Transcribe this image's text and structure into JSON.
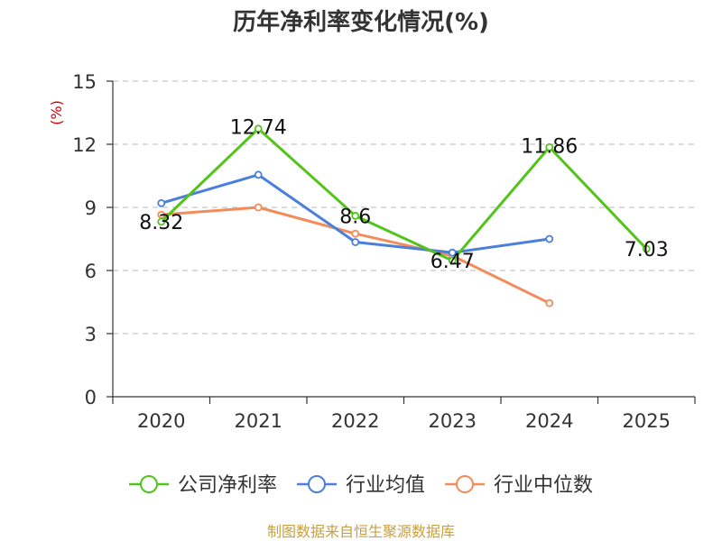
{
  "chart_data": {
    "type": "line",
    "title": "历年净利率变化情况(%)",
    "ylabel": "(%)",
    "xlabel": "",
    "categories": [
      "2020",
      "2021",
      "2022",
      "2023",
      "2024",
      "2025"
    ],
    "ylim": [
      0,
      15
    ],
    "yticks": [
      0,
      3,
      6,
      9,
      12,
      15
    ],
    "grid": true,
    "legend_position": "bottom",
    "series": [
      {
        "name": "公司净利率",
        "color": "#52c41a",
        "values": [
          8.32,
          12.74,
          8.6,
          6.47,
          11.86,
          7.03
        ],
        "labels": [
          "8.32",
          "12.74",
          "8.6",
          "6.47",
          "11.86",
          "7.03"
        ]
      },
      {
        "name": "行业均值",
        "color": "#4a7fdc",
        "values": [
          9.2,
          10.55,
          7.35,
          6.85,
          7.5,
          null
        ]
      },
      {
        "name": "行业中位数",
        "color": "#f28c5a",
        "values": [
          8.65,
          9.0,
          7.75,
          6.7,
          4.45,
          null
        ]
      }
    ]
  },
  "source": "制图数据来自恒生聚源数据库"
}
